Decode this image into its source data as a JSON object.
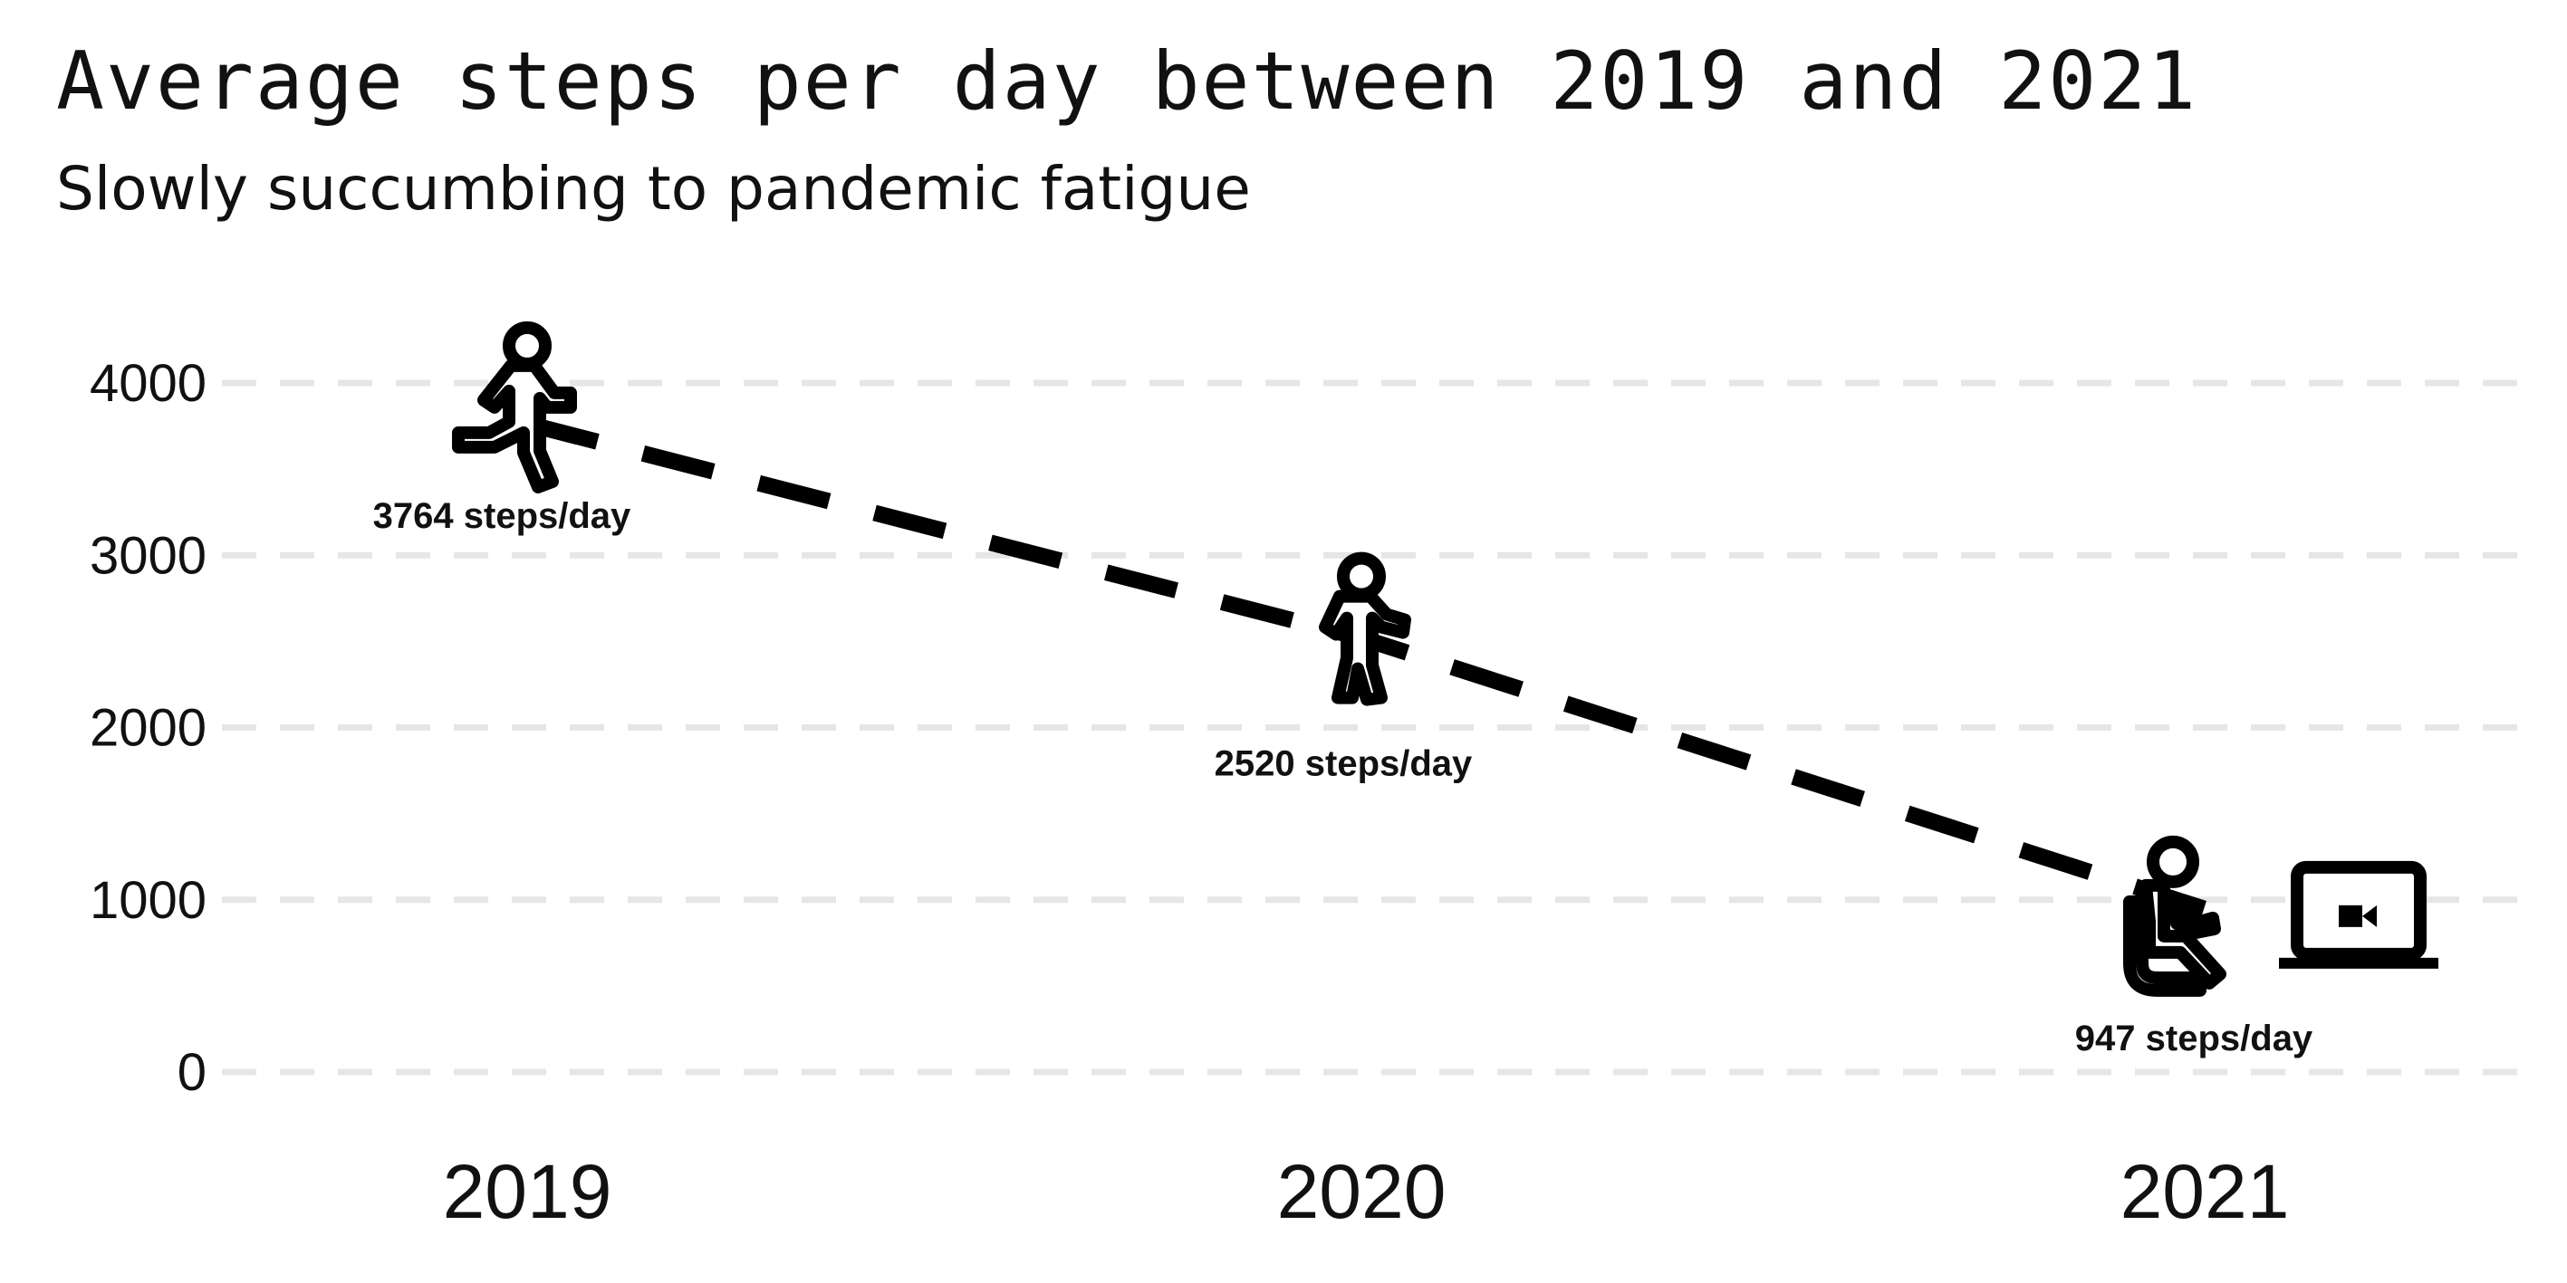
{
  "chart_data": {
    "type": "line",
    "title": "Average steps per day between 2019 and 2021",
    "subtitle": "Slowly succumbing to pandemic fatigue",
    "categories": [
      "2019",
      "2020",
      "2021"
    ],
    "values": [
      3764,
      2520,
      947
    ],
    "data_labels": [
      "3764 steps/day",
      "2520 steps/day",
      "947 steps/day"
    ],
    "icons": [
      "person-hiking-icon",
      "person-walking-icon",
      "person-seated-icon"
    ],
    "extra_icon": "laptop-video-call-icon",
    "y_ticks": [
      "0",
      "1000",
      "2000",
      "3000",
      "4000"
    ],
    "ylim": [
      0,
      4000
    ],
    "xlabel": "",
    "ylabel": "",
    "grid": "horizontal-dashed",
    "line_style": "dashed",
    "colors": {
      "line": "#000000",
      "grid": "#e6e6e6",
      "text": "#111111"
    }
  }
}
